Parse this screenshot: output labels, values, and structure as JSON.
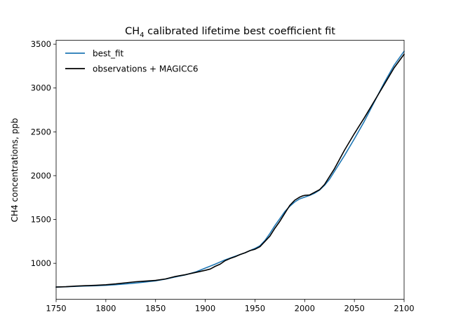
{
  "chart_data": {
    "type": "line",
    "title_main": "CH",
    "title_sub": "4",
    "title_rest": " calibrated lifetime best coefficient fit",
    "xlabel": "",
    "ylabel": "CH4 concentrations, ppb",
    "xlim": [
      1750,
      2100
    ],
    "ylim": [
      590,
      3545
    ],
    "xticks": [
      1750,
      1800,
      1850,
      1900,
      1950,
      2000,
      2050,
      2100
    ],
    "yticks": [
      1000,
      1500,
      2000,
      2500,
      3000,
      3500
    ],
    "legend_position": "upper-left",
    "grid": false,
    "series": [
      {
        "name": "best_fit",
        "color": "#1f77b4",
        "x": [
          1750,
          1760,
          1770,
          1780,
          1790,
          1800,
          1810,
          1820,
          1830,
          1840,
          1850,
          1860,
          1870,
          1880,
          1890,
          1900,
          1910,
          1920,
          1930,
          1940,
          1950,
          1955,
          1960,
          1965,
          1970,
          1975,
          1980,
          1985,
          1990,
          1995,
          2000,
          2005,
          2010,
          2015,
          2020,
          2025,
          2030,
          2040,
          2050,
          2060,
          2070,
          2080,
          2090,
          2100
        ],
        "y": [
          729,
          732,
          737,
          741,
          744,
          749,
          756,
          765,
          775,
          787,
          800,
          820,
          845,
          868,
          900,
          945,
          990,
          1040,
          1080,
          1120,
          1170,
          1200,
          1260,
          1340,
          1430,
          1510,
          1590,
          1650,
          1700,
          1735,
          1755,
          1775,
          1800,
          1835,
          1890,
          1960,
          2050,
          2230,
          2420,
          2620,
          2840,
          3060,
          3260,
          3420
        ]
      },
      {
        "name": "observations + MAGICC6",
        "color": "#000000",
        "x": [
          1750,
          1760,
          1770,
          1780,
          1790,
          1800,
          1810,
          1820,
          1830,
          1840,
          1850,
          1860,
          1870,
          1880,
          1890,
          1900,
          1905,
          1910,
          1915,
          1920,
          1925,
          1930,
          1935,
          1940,
          1945,
          1950,
          1955,
          1960,
          1965,
          1970,
          1975,
          1980,
          1985,
          1990,
          1995,
          1998,
          2000,
          2005,
          2010,
          2015,
          2020,
          2030,
          2040,
          2050,
          2060,
          2070,
          2080,
          2090,
          2100
        ],
        "y": [
          729,
          733,
          740,
          745,
          749,
          755,
          765,
          778,
          790,
          797,
          805,
          822,
          850,
          870,
          895,
          920,
          935,
          965,
          990,
          1030,
          1055,
          1075,
          1100,
          1120,
          1145,
          1160,
          1190,
          1250,
          1310,
          1400,
          1480,
          1570,
          1660,
          1720,
          1755,
          1770,
          1775,
          1780,
          1810,
          1840,
          1900,
          2080,
          2290,
          2480,
          2660,
          2850,
          3040,
          3230,
          3385
        ]
      }
    ]
  }
}
